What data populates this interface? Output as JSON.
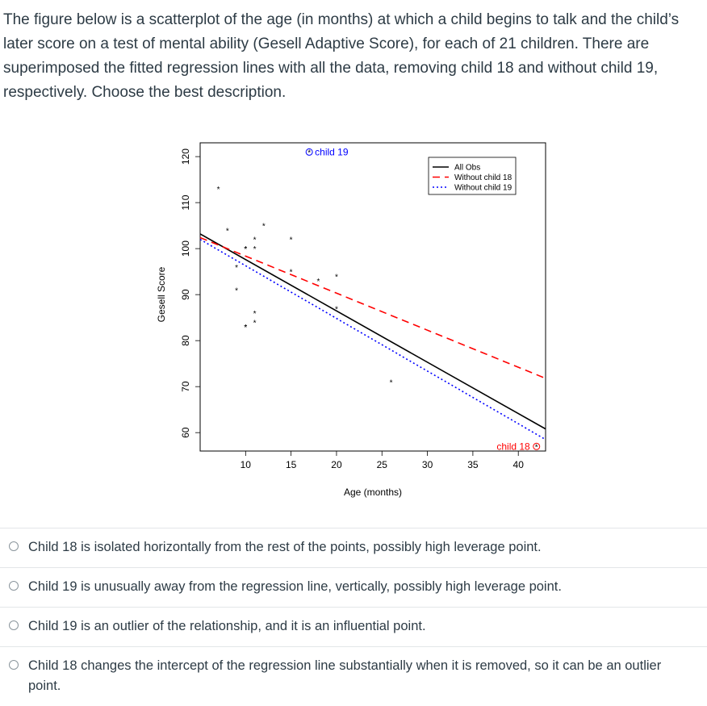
{
  "question": {
    "text": "The figure below is a scatterplot of the age (in months) at which a child begins to talk and the child’s later score on a test of mental ability (Gesell Adaptive Score), for each of 21 children. There are superimposed the fitted regression lines with all the data, removing child 18 and without child 19, respectively. Choose the best description."
  },
  "chart_data": {
    "type": "scatter",
    "xlabel": "Age (months)",
    "ylabel": "Gesell Score",
    "xlim": [
      5,
      43
    ],
    "ylim": [
      56,
      123
    ],
    "xticks": [
      10,
      15,
      20,
      25,
      30,
      35,
      40
    ],
    "yticks": [
      60,
      70,
      80,
      90,
      100,
      110,
      120
    ],
    "points": [
      {
        "x": 15,
        "y": 95
      },
      {
        "x": 26,
        "y": 71
      },
      {
        "x": 10,
        "y": 83
      },
      {
        "x": 9,
        "y": 91
      },
      {
        "x": 15,
        "y": 102
      },
      {
        "x": 20,
        "y": 87
      },
      {
        "x": 18,
        "y": 93
      },
      {
        "x": 11,
        "y": 100
      },
      {
        "x": 8,
        "y": 104
      },
      {
        "x": 20,
        "y": 94
      },
      {
        "x": 7,
        "y": 113
      },
      {
        "x": 9,
        "y": 96
      },
      {
        "x": 10,
        "y": 83
      },
      {
        "x": 11,
        "y": 84
      },
      {
        "x": 11,
        "y": 102
      },
      {
        "x": 10,
        "y": 100
      },
      {
        "x": 12,
        "y": 105
      },
      {
        "x": 42,
        "y": 57
      },
      {
        "x": 17,
        "y": 121
      },
      {
        "x": 11,
        "y": 86
      },
      {
        "x": 10,
        "y": 100
      }
    ],
    "highlighted": [
      {
        "label": "child 19",
        "x": 17,
        "y": 121
      },
      {
        "label": "child 18",
        "x": 42,
        "y": 57
      }
    ],
    "series": [
      {
        "name": "All Obs",
        "color": "#000000",
        "dash": "solid",
        "x": [
          5,
          43
        ],
        "y": [
          103.2,
          60.8
        ]
      },
      {
        "name": "Without child 18",
        "color": "#ff0000",
        "dash": "dashed",
        "x": [
          5,
          43
        ],
        "y": [
          102.4,
          71.8
        ]
      },
      {
        "name": "Without child 19",
        "color": "#0000ff",
        "dash": "dotted",
        "x": [
          5,
          43
        ],
        "y": [
          102.0,
          58.5
        ]
      }
    ],
    "legend_position": "top-right",
    "grid": false
  },
  "options": [
    {
      "label": "Child 18 is isolated horizontally from the rest of the points, possibly high leverage point."
    },
    {
      "label": "Child 19 is unusually away from the regression line, vertically, possibly high leverage point."
    },
    {
      "label": "Child 19 is an outlier of the relationship, and it is an influential point."
    },
    {
      "label": "Child 18 changes the intercept of the regression line substantially when it is removed, so it can be an outlier point."
    }
  ]
}
